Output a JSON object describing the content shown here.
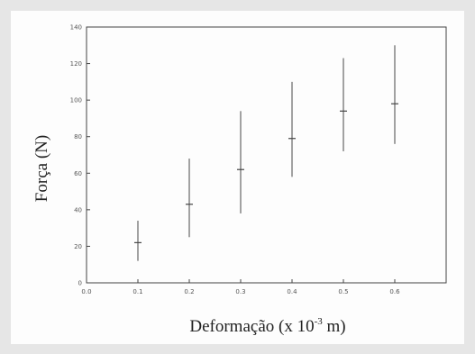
{
  "chart_data": {
    "type": "scatter",
    "error_bars": true,
    "x": [
      0.1,
      0.2,
      0.3,
      0.4,
      0.5,
      0.6
    ],
    "y": [
      22,
      43,
      62,
      79,
      94,
      98
    ],
    "y_low": [
      12,
      25,
      38,
      58,
      72,
      76
    ],
    "y_high": [
      34,
      68,
      94,
      110,
      123,
      130
    ],
    "xlabel_main": "Deformação (x 10",
    "xlabel_sup": "-3",
    "xlabel_unit": " m)",
    "ylabel": "Força (N)",
    "xlim": [
      0.0,
      0.7
    ],
    "ylim": [
      0,
      140
    ],
    "xticks": [
      "0.0",
      "0.1",
      "0.2",
      "0.3",
      "0.4",
      "0.5",
      "0.6"
    ],
    "yticks": [
      "0",
      "20",
      "40",
      "60",
      "80",
      "100",
      "120",
      "140"
    ],
    "grid": false,
    "legend": "none"
  }
}
